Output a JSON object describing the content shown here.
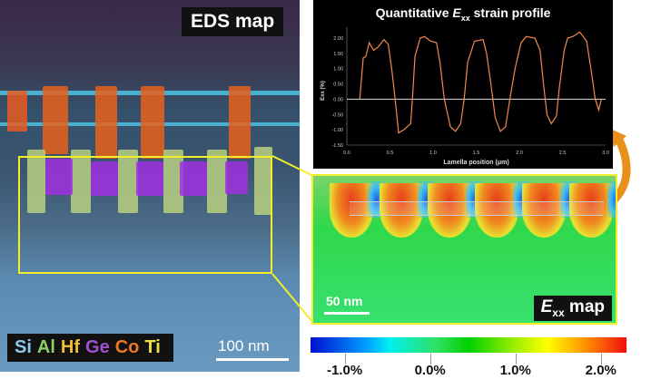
{
  "eds_panel": {
    "title": "EDS map",
    "scale_bar": "100 nm",
    "elements": [
      {
        "symbol": "Si",
        "color": "#8ec8ea"
      },
      {
        "symbol": "Al",
        "color": "#8cd060"
      },
      {
        "symbol": "Hf",
        "color": "#f0c030"
      },
      {
        "symbol": "Ge",
        "color": "#a050d0"
      },
      {
        "symbol": "Co",
        "color": "#f07820"
      },
      {
        "symbol": "Ti",
        "color": "#f0e040"
      }
    ]
  },
  "strain_map": {
    "title_main": "E",
    "title_sub": "xx",
    "title_suffix": " map",
    "scale_bar": "50 nm"
  },
  "colorbar": {
    "ticks": [
      "-1.0%",
      "0.0%",
      "1.0%",
      "2.0%"
    ],
    "range": [
      -1.4,
      2.3
    ]
  },
  "chart_data": {
    "type": "line",
    "title": "Quantitative Exx strain profile",
    "title_parts": {
      "main": "Quantitative ",
      "sym": "E",
      "sub": "xx",
      "rest": " strain profile"
    },
    "xlabel": "Lamella position (μm)",
    "ylabel": "Exx (%)",
    "xlim": [
      0,
      3
    ],
    "ylim": [
      -1.5,
      2.25
    ],
    "xticks": [
      "0.0",
      "0.5",
      "1.0",
      "1.5",
      "2.0",
      "2.5",
      "3.0"
    ],
    "yticks": [
      "2.00",
      "1.50",
      "1.00",
      "0.50",
      "0.00",
      "-0.50",
      "-1.00",
      "-1.50"
    ],
    "line_color": "#f08a50",
    "x": [
      0.15,
      0.19,
      0.22,
      0.26,
      0.31,
      0.36,
      0.43,
      0.48,
      0.52,
      0.56,
      0.6,
      0.66,
      0.7,
      0.74,
      0.76,
      0.79,
      0.85,
      0.9,
      0.97,
      1.04,
      1.08,
      1.13,
      1.2,
      1.26,
      1.32,
      1.36,
      1.4,
      1.48,
      1.58,
      1.62,
      1.67,
      1.72,
      1.78,
      1.84,
      1.89,
      1.95,
      2.02,
      2.08,
      2.18,
      2.24,
      2.28,
      2.32,
      2.37,
      2.43,
      2.46,
      2.52,
      2.56,
      2.62,
      2.7,
      2.78,
      2.84,
      2.88,
      2.92,
      2.95
    ],
    "y": [
      0,
      1.35,
      1.4,
      1.85,
      1.6,
      1.7,
      1.95,
      1.8,
      1.0,
      0,
      -1.1,
      -1.0,
      -0.9,
      -0.8,
      0,
      1.4,
      2.0,
      2.05,
      1.9,
      1.85,
      1.2,
      0,
      -0.9,
      -1.05,
      -0.8,
      0,
      1.2,
      1.9,
      1.95,
      1.5,
      0.5,
      -0.6,
      -1.05,
      -0.9,
      0,
      1.0,
      1.85,
      2.05,
      2.0,
      1.6,
      0.5,
      -0.5,
      -0.8,
      -0.55,
      0.3,
      1.6,
      2.0,
      2.05,
      2.2,
      1.9,
      0.8,
      0,
      -0.35,
      0
    ]
  }
}
